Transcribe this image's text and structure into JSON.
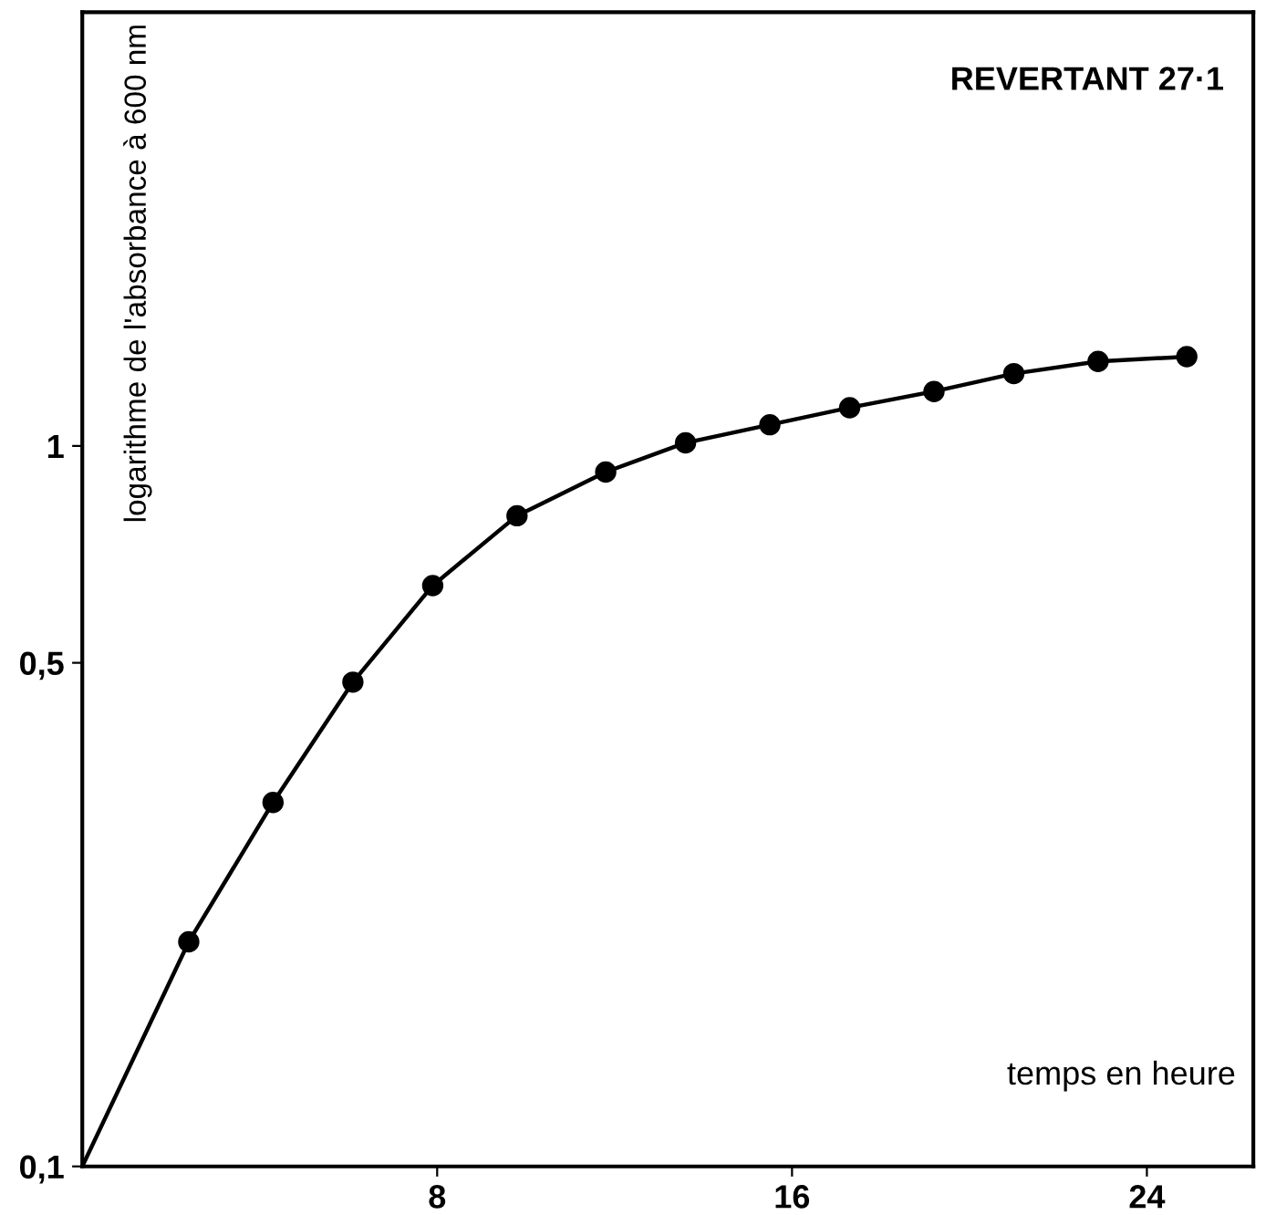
{
  "chart_data": {
    "type": "line",
    "xlabel": "temps en heure",
    "ylabel": "logarithme de l'absorbance à 600 nm",
    "annotations": [
      "REVERTANT 27·1"
    ],
    "log": "y",
    "xlim": [
      0,
      26.4
    ],
    "ylim": [
      0.1,
      4
    ],
    "xticks": [
      8,
      16,
      24
    ],
    "yticks": [
      {
        "value": 0.1,
        "label": "0,1"
      },
      {
        "value": 0.5,
        "label": "0,5"
      },
      {
        "value": 1,
        "label": "1"
      }
    ],
    "grid": false,
    "series": [
      {
        "color": "#000000",
        "marker": "none",
        "x": [
          0,
          2.4,
          4.3,
          6.1,
          7.9,
          9.8,
          11.8,
          13.6,
          15.5,
          17.3,
          19.2,
          21,
          22.9,
          24.9
        ],
        "values": [
          0.1,
          0.205,
          0.32,
          0.47,
          0.64,
          0.8,
          0.92,
          1.01,
          1.07,
          1.13,
          1.19,
          1.26,
          1.31,
          1.33
        ]
      },
      {
        "type": "scatter",
        "color": "#000000",
        "marker": "circle",
        "x": [
          2.4,
          4.3,
          6.1,
          7.9,
          9.8,
          11.8,
          13.6,
          15.5,
          17.3,
          19.2,
          21,
          22.9,
          24.9
        ],
        "values": [
          0.205,
          0.32,
          0.47,
          0.64,
          0.8,
          0.92,
          1.01,
          1.07,
          1.13,
          1.19,
          1.26,
          1.31,
          1.33
        ]
      }
    ]
  }
}
